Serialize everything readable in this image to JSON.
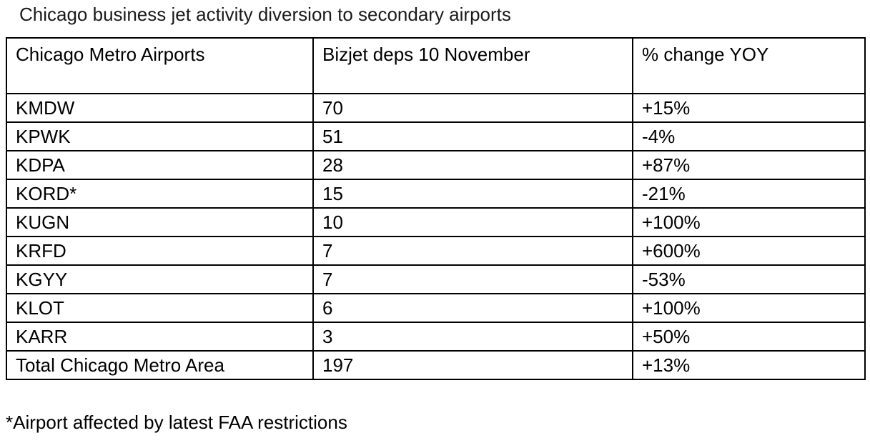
{
  "chart_data": {
    "type": "table",
    "title": "Chicago business jet activity diversion to secondary airports",
    "columns": [
      "Chicago Metro Airports",
      "Bizjet deps 10 November",
      "% change YOY"
    ],
    "rows": [
      [
        "KMDW",
        70,
        "+15%"
      ],
      [
        "KPWK",
        51,
        "-4%"
      ],
      [
        "KDPA",
        28,
        "+87%"
      ],
      [
        "KORD*",
        15,
        "-21%"
      ],
      [
        "KUGN",
        10,
        "+100%"
      ],
      [
        "KRFD",
        7,
        "+600%"
      ],
      [
        "KGYY",
        7,
        "-53%"
      ],
      [
        "KLOT",
        6,
        "+100%"
      ],
      [
        "KARR",
        3,
        "+50%"
      ],
      [
        "Total Chicago Metro Area",
        197,
        "+13%"
      ]
    ],
    "footnote": "*Airport affected by latest FAA restrictions"
  }
}
